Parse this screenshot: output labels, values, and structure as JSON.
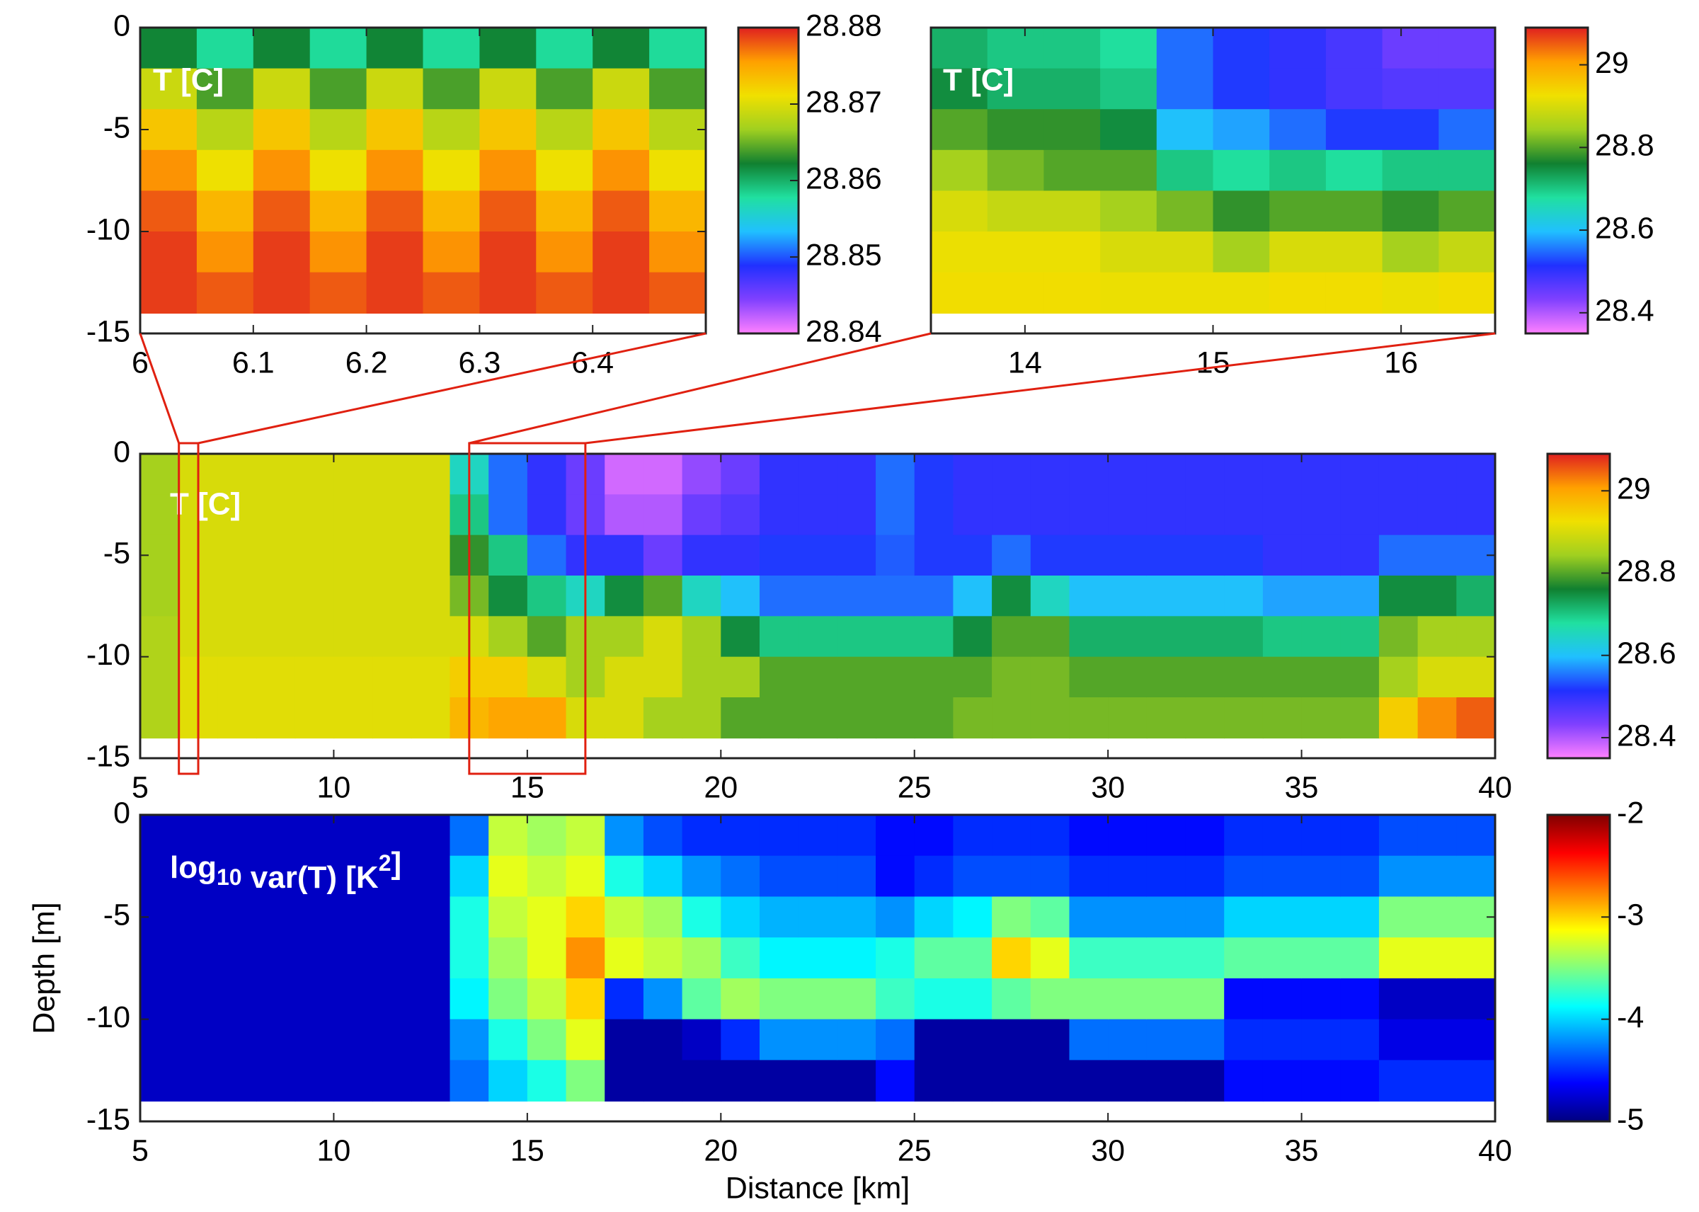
{
  "chart_data": [
    {
      "type": "heatmap",
      "annotation": "T [C]",
      "x": [
        6.025,
        6.075,
        6.125,
        6.175,
        6.225,
        6.275,
        6.325,
        6.375,
        6.425,
        6.475
      ],
      "y": [
        -1,
        -3,
        -5,
        -7,
        -9,
        -11,
        -13
      ],
      "z": [
        [
          28.862,
          28.869,
          28.873,
          28.876,
          28.878,
          28.879,
          28.879
        ],
        [
          28.858,
          28.864,
          28.868,
          28.871,
          28.874,
          28.876,
          28.878
        ],
        [
          28.862,
          28.869,
          28.873,
          28.876,
          28.878,
          28.879,
          28.879
        ],
        [
          28.858,
          28.864,
          28.868,
          28.871,
          28.874,
          28.876,
          28.878
        ],
        [
          28.862,
          28.869,
          28.873,
          28.876,
          28.878,
          28.879,
          28.879
        ],
        [
          28.858,
          28.864,
          28.868,
          28.871,
          28.874,
          28.876,
          28.878
        ],
        [
          28.862,
          28.869,
          28.873,
          28.876,
          28.878,
          28.879,
          28.879
        ],
        [
          28.858,
          28.864,
          28.868,
          28.871,
          28.874,
          28.876,
          28.878
        ],
        [
          28.862,
          28.869,
          28.873,
          28.876,
          28.878,
          28.879,
          28.879
        ],
        [
          28.858,
          28.864,
          28.868,
          28.871,
          28.874,
          28.876,
          28.878
        ]
      ],
      "xlim": [
        6,
        6.5
      ],
      "xticks": [
        6,
        6.1,
        6.2,
        6.3,
        6.4
      ],
      "ylim": [
        -15,
        0
      ],
      "yticks": [
        -15,
        -10,
        -5,
        0
      ],
      "clim": [
        28.84,
        28.88
      ],
      "cticks": [
        28.84,
        28.85,
        28.86,
        28.87,
        28.88
      ],
      "colormap": [
        "#ff80ff",
        "#8040ff",
        "#2030ff",
        "#20c0ff",
        "#20e0a0",
        "#108030",
        "#a0d020",
        "#f0e000",
        "#ffa000",
        "#e02020"
      ]
    },
    {
      "type": "heatmap",
      "annotation": "T [C]",
      "x": [
        13.65,
        13.95,
        14.25,
        14.55,
        14.85,
        15.15,
        15.45,
        15.75,
        16.05,
        16.35
      ],
      "y": [
        -1,
        -3,
        -5,
        -7,
        -9,
        -11,
        -13
      ],
      "z": [
        [
          28.72,
          28.75,
          28.8,
          28.85,
          28.9,
          28.92,
          28.93
        ],
        [
          28.7,
          28.72,
          28.78,
          28.82,
          28.88,
          28.92,
          28.93
        ],
        [
          28.7,
          28.72,
          28.78,
          28.8,
          28.88,
          28.92,
          28.93
        ],
        [
          28.68,
          28.7,
          28.75,
          28.8,
          28.85,
          28.9,
          28.92
        ],
        [
          28.55,
          28.55,
          28.6,
          28.7,
          28.82,
          28.9,
          28.92
        ],
        [
          28.52,
          28.52,
          28.58,
          28.68,
          28.78,
          28.85,
          28.92
        ],
        [
          28.5,
          28.5,
          28.55,
          28.7,
          28.8,
          28.9,
          28.93
        ],
        [
          28.48,
          28.48,
          28.52,
          28.68,
          28.8,
          28.9,
          28.93
        ],
        [
          28.45,
          28.47,
          28.52,
          28.7,
          28.78,
          28.85,
          28.92
        ],
        [
          28.45,
          28.47,
          28.55,
          28.7,
          28.8,
          28.88,
          28.93
        ]
      ],
      "xlim": [
        13.5,
        16.5
      ],
      "xticks": [
        14,
        15,
        16
      ],
      "ylim": [
        -15,
        0
      ],
      "clim": [
        28.35,
        29.09
      ],
      "cticks": [
        28.4,
        28.6,
        28.8,
        29
      ],
      "colormap": [
        "#ff80ff",
        "#8040ff",
        "#2030ff",
        "#20c0ff",
        "#20e0a0",
        "#108030",
        "#a0d020",
        "#f0e000",
        "#ffa000",
        "#e02020"
      ]
    },
    {
      "type": "heatmap",
      "annotation": "T [C]",
      "x": [
        5.5,
        6.5,
        7.5,
        8.5,
        9.5,
        10.5,
        11.5,
        12.5,
        13.5,
        14.5,
        15.5,
        16.5,
        17.5,
        18.5,
        19.5,
        20.5,
        21.5,
        22.5,
        23.5,
        24.5,
        25.5,
        26.5,
        27.5,
        28.5,
        29.5,
        30.5,
        31.5,
        32.5,
        33.5,
        34.5,
        35.5,
        36.5,
        37.5,
        38.5,
        39.5
      ],
      "y": [
        -1,
        -3,
        -5,
        -7,
        -9,
        -11,
        -13
      ],
      "z": [
        [
          28.85,
          28.85,
          28.85,
          28.85,
          28.86,
          28.86,
          28.86
        ],
        [
          28.9,
          28.9,
          28.9,
          28.9,
          28.9,
          28.91,
          28.91
        ],
        [
          28.9,
          28.9,
          28.9,
          28.9,
          28.9,
          28.91,
          28.91
        ],
        [
          28.9,
          28.9,
          28.9,
          28.9,
          28.9,
          28.91,
          28.91
        ],
        [
          28.9,
          28.9,
          28.9,
          28.9,
          28.9,
          28.91,
          28.91
        ],
        [
          28.9,
          28.9,
          28.9,
          28.9,
          28.9,
          28.91,
          28.91
        ],
        [
          28.9,
          28.9,
          28.9,
          28.9,
          28.9,
          28.91,
          28.91
        ],
        [
          28.9,
          28.9,
          28.9,
          28.9,
          28.9,
          28.91,
          28.91
        ],
        [
          28.65,
          28.7,
          28.78,
          28.82,
          28.9,
          28.95,
          28.98
        ],
        [
          28.55,
          28.55,
          28.7,
          28.75,
          28.85,
          28.95,
          29.0
        ],
        [
          28.5,
          28.5,
          28.55,
          28.7,
          28.8,
          28.9,
          29.0
        ],
        [
          28.45,
          28.45,
          28.5,
          28.65,
          28.85,
          28.85,
          28.9
        ],
        [
          28.38,
          28.4,
          28.5,
          28.75,
          28.85,
          28.9,
          28.9
        ],
        [
          28.38,
          28.4,
          28.45,
          28.8,
          28.9,
          28.9,
          28.85
        ],
        [
          28.42,
          28.45,
          28.5,
          28.65,
          28.85,
          28.85,
          28.85
        ],
        [
          28.45,
          28.47,
          28.5,
          28.6,
          28.75,
          28.85,
          28.8
        ],
        [
          28.5,
          28.5,
          28.52,
          28.55,
          28.7,
          28.8,
          28.8
        ],
        [
          28.5,
          28.5,
          28.52,
          28.55,
          28.7,
          28.8,
          28.8
        ],
        [
          28.5,
          28.5,
          28.52,
          28.55,
          28.7,
          28.8,
          28.8
        ],
        [
          28.55,
          28.55,
          28.54,
          28.55,
          28.7,
          28.8,
          28.8
        ],
        [
          28.52,
          28.52,
          28.52,
          28.55,
          28.7,
          28.8,
          28.8
        ],
        [
          28.5,
          28.5,
          28.52,
          28.6,
          28.75,
          28.8,
          28.82
        ],
        [
          28.5,
          28.5,
          28.55,
          28.75,
          28.8,
          28.82,
          28.82
        ],
        [
          28.5,
          28.5,
          28.52,
          28.65,
          28.8,
          28.82,
          28.82
        ],
        [
          28.5,
          28.5,
          28.52,
          28.6,
          28.72,
          28.8,
          28.82
        ],
        [
          28.5,
          28.5,
          28.52,
          28.6,
          28.72,
          28.8,
          28.82
        ],
        [
          28.5,
          28.5,
          28.52,
          28.6,
          28.72,
          28.8,
          28.82
        ],
        [
          28.5,
          28.5,
          28.52,
          28.6,
          28.72,
          28.8,
          28.82
        ],
        [
          28.5,
          28.5,
          28.52,
          28.6,
          28.72,
          28.8,
          28.82
        ],
        [
          28.5,
          28.5,
          28.5,
          28.58,
          28.7,
          28.8,
          28.82
        ],
        [
          28.5,
          28.5,
          28.5,
          28.58,
          28.7,
          28.8,
          28.82
        ],
        [
          28.5,
          28.5,
          28.5,
          28.58,
          28.7,
          28.8,
          28.82
        ],
        [
          28.5,
          28.5,
          28.55,
          28.75,
          28.82,
          28.85,
          28.95
        ],
        [
          28.5,
          28.5,
          28.55,
          28.75,
          28.85,
          28.9,
          29.02
        ],
        [
          28.5,
          28.5,
          28.55,
          28.72,
          28.85,
          28.9,
          29.05
        ]
      ],
      "xlim": [
        5,
        40
      ],
      "xticks": [
        5,
        10,
        15,
        20,
        25,
        30,
        35,
        40
      ],
      "ylim": [
        -15,
        0
      ],
      "yticks": [
        -15,
        -10,
        -5,
        0
      ],
      "clim": [
        28.35,
        29.09
      ],
      "cticks": [
        28.4,
        28.6,
        28.8,
        29
      ],
      "colormap": [
        "#ff80ff",
        "#8040ff",
        "#2030ff",
        "#20c0ff",
        "#20e0a0",
        "#108030",
        "#a0d020",
        "#f0e000",
        "#ffa000",
        "#e02020"
      ]
    },
    {
      "type": "heatmap",
      "annotation": [
        {
          "text": "log"
        },
        {
          "text": "10",
          "baseline": "sub"
        },
        {
          "text": " var(T) [K"
        },
        {
          "text": "2",
          "baseline": "super"
        },
        {
          "text": "]"
        }
      ],
      "xlabel": "Distance [km]",
      "ylabel": "Depth [m]",
      "x": [
        5.5,
        6.5,
        7.5,
        8.5,
        9.5,
        10.5,
        11.5,
        12.5,
        13.5,
        14.5,
        15.5,
        16.5,
        17.5,
        18.5,
        19.5,
        20.5,
        21.5,
        22.5,
        23.5,
        24.5,
        25.5,
        26.5,
        27.5,
        28.5,
        29.5,
        30.5,
        31.5,
        32.5,
        33.5,
        34.5,
        35.5,
        36.5,
        37.5,
        38.5,
        39.5
      ],
      "y": [
        -1,
        -3,
        -5,
        -7,
        -9,
        -11,
        -13
      ],
      "z": [
        [
          -4.8,
          -4.8,
          -4.8,
          -4.8,
          -4.8,
          -4.8,
          -4.8
        ],
        [
          -4.8,
          -4.8,
          -4.8,
          -4.8,
          -4.8,
          -4.8,
          -4.8
        ],
        [
          -4.8,
          -4.8,
          -4.8,
          -4.8,
          -4.8,
          -4.8,
          -4.8
        ],
        [
          -4.8,
          -4.8,
          -4.8,
          -4.8,
          -4.8,
          -4.8,
          -4.8
        ],
        [
          -4.8,
          -4.8,
          -4.8,
          -4.8,
          -4.8,
          -4.8,
          -4.8
        ],
        [
          -4.8,
          -4.8,
          -4.8,
          -4.8,
          -4.8,
          -4.8,
          -4.8
        ],
        [
          -4.8,
          -4.8,
          -4.8,
          -4.8,
          -4.8,
          -4.8,
          -4.8
        ],
        [
          -4.8,
          -4.8,
          -4.8,
          -4.8,
          -4.8,
          -4.8,
          -4.8
        ],
        [
          -4.3,
          -4.0,
          -3.8,
          -3.8,
          -3.9,
          -4.2,
          -4.3
        ],
        [
          -3.3,
          -3.2,
          -3.3,
          -3.4,
          -3.5,
          -3.8,
          -4.0
        ],
        [
          -3.4,
          -3.3,
          -3.2,
          -3.2,
          -3.3,
          -3.5,
          -3.8
        ],
        [
          -3.3,
          -3.2,
          -3.0,
          -2.8,
          -3.0,
          -3.2,
          -3.5
        ],
        [
          -4.2,
          -3.8,
          -3.3,
          -3.2,
          -4.5,
          -4.9,
          -4.9
        ],
        [
          -4.4,
          -4.0,
          -3.4,
          -3.3,
          -4.2,
          -4.9,
          -4.9
        ],
        [
          -4.5,
          -4.2,
          -3.8,
          -3.4,
          -3.6,
          -4.8,
          -4.9
        ],
        [
          -4.5,
          -4.3,
          -4.0,
          -3.7,
          -3.4,
          -4.5,
          -4.9
        ],
        [
          -4.5,
          -4.4,
          -4.1,
          -3.9,
          -3.5,
          -4.2,
          -4.9
        ],
        [
          -4.5,
          -4.4,
          -4.1,
          -3.9,
          -3.5,
          -4.2,
          -4.9
        ],
        [
          -4.5,
          -4.4,
          -4.1,
          -3.9,
          -3.5,
          -4.2,
          -4.9
        ],
        [
          -4.6,
          -4.6,
          -4.2,
          -3.8,
          -3.7,
          -4.3,
          -4.6
        ],
        [
          -4.6,
          -4.5,
          -4.0,
          -3.6,
          -3.8,
          -4.9,
          -4.9
        ],
        [
          -4.5,
          -4.4,
          -3.9,
          -3.6,
          -3.8,
          -4.9,
          -4.9
        ],
        [
          -4.5,
          -4.4,
          -3.5,
          -3.0,
          -3.6,
          -4.9,
          -4.9
        ],
        [
          -4.5,
          -4.4,
          -3.6,
          -3.2,
          -3.5,
          -4.9,
          -4.9
        ],
        [
          -4.6,
          -4.5,
          -4.2,
          -3.7,
          -3.5,
          -4.3,
          -4.9
        ],
        [
          -4.6,
          -4.5,
          -4.2,
          -3.7,
          -3.5,
          -4.3,
          -4.9
        ],
        [
          -4.6,
          -4.5,
          -4.2,
          -3.7,
          -3.5,
          -4.3,
          -4.9
        ],
        [
          -4.6,
          -4.5,
          -4.2,
          -3.7,
          -3.5,
          -4.3,
          -4.9
        ],
        [
          -4.5,
          -4.4,
          -4.0,
          -3.6,
          -4.6,
          -4.5,
          -4.6
        ],
        [
          -4.5,
          -4.4,
          -4.0,
          -3.6,
          -4.6,
          -4.5,
          -4.6
        ],
        [
          -4.5,
          -4.4,
          -4.0,
          -3.6,
          -4.6,
          -4.5,
          -4.6
        ],
        [
          -4.5,
          -4.4,
          -4.0,
          -3.6,
          -4.6,
          -4.5,
          -4.6
        ],
        [
          -4.4,
          -4.2,
          -3.5,
          -3.2,
          -4.8,
          -4.7,
          -4.5
        ],
        [
          -4.4,
          -4.2,
          -3.5,
          -3.2,
          -4.8,
          -4.7,
          -4.5
        ],
        [
          -4.4,
          -4.2,
          -3.5,
          -3.2,
          -4.8,
          -4.7,
          -4.5
        ]
      ],
      "xlim": [
        5,
        40
      ],
      "xticks": [
        5,
        10,
        15,
        20,
        25,
        30,
        35,
        40
      ],
      "ylim": [
        -15,
        0
      ],
      "yticks": [
        -15,
        -10,
        -5,
        0
      ],
      "clim": [
        -5,
        -2
      ],
      "cticks": [
        -5,
        -4,
        -3,
        -2
      ],
      "colormap": [
        "#000080",
        "#0000ff",
        "#0080ff",
        "#00ffff",
        "#80ff80",
        "#ffff00",
        "#ff8000",
        "#ff0000",
        "#800000"
      ]
    }
  ]
}
